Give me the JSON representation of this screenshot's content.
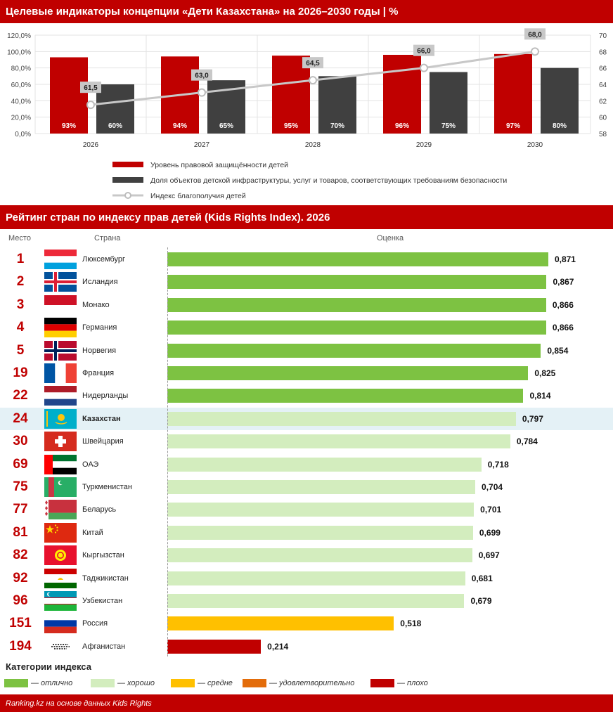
{
  "header1": {
    "title": "Целевые индикаторы концепции «Дети Казахстана» на 2026–2030 годы | %"
  },
  "header2": {
    "title": "Рейтинг стран по индексу прав детей (Kids Rights Index). 2026"
  },
  "chart_data": [
    {
      "type": "bar",
      "categories": [
        "2026",
        "2027",
        "2028",
        "2029",
        "2030"
      ],
      "series": [
        {
          "name": "Уровень правовой защищённости детей",
          "type": "bar",
          "axis": "left",
          "color": "#c00000",
          "values": [
            93,
            94,
            95,
            96,
            97
          ],
          "labels": [
            "93%",
            "94%",
            "95%",
            "96%",
            "97%"
          ]
        },
        {
          "name": "Доля объектов детской инфраструктуры, услуг и товаров, соответствующих требованиям безопасности",
          "type": "bar",
          "axis": "left",
          "color": "#404040",
          "values": [
            60,
            65,
            70,
            75,
            80
          ],
          "labels": [
            "60%",
            "65%",
            "70%",
            "75%",
            "80%"
          ]
        },
        {
          "name": "Индекс благополучия детей",
          "type": "line",
          "axis": "right",
          "color": "#c8c8c8",
          "values": [
            61.5,
            63.0,
            64.5,
            66.0,
            68.0
          ],
          "labels": [
            "61,5",
            "63,0",
            "64,5",
            "66,0",
            "68,0"
          ]
        }
      ],
      "y_left": {
        "range": [
          0,
          120
        ],
        "ticks": [
          "0,0%",
          "20,0%",
          "40,0%",
          "60,0%",
          "80,0%",
          "100,0%",
          "120,0%"
        ]
      },
      "y_right": {
        "range": [
          58,
          70
        ],
        "ticks": [
          "58",
          "60",
          "62",
          "64",
          "66",
          "68",
          "70"
        ]
      },
      "grid": true,
      "legend_position": "bottom"
    },
    {
      "type": "bar",
      "orientation": "horizontal",
      "columns": {
        "rank": "Место",
        "country": "Страна",
        "score": "Оценка"
      },
      "xlim": [
        0,
        0.9
      ],
      "rows": [
        {
          "rank": "1",
          "country": "Люксембург",
          "value": 0.871,
          "label": "0,871",
          "category": "excellent",
          "flag": "luxembourg-flag"
        },
        {
          "rank": "2",
          "country": "Исландия",
          "value": 0.867,
          "label": "0,867",
          "category": "excellent",
          "flag": "iceland-flag"
        },
        {
          "rank": "3",
          "country": "Монако",
          "value": 0.866,
          "label": "0,866",
          "category": "excellent",
          "flag": "monaco-flag"
        },
        {
          "rank": "4",
          "country": "Германия",
          "value": 0.866,
          "label": "0,866",
          "category": "excellent",
          "flag": "germany-flag"
        },
        {
          "rank": "5",
          "country": "Норвегия",
          "value": 0.854,
          "label": "0,854",
          "category": "excellent",
          "flag": "norway-flag"
        },
        {
          "rank": "19",
          "country": "Франция",
          "value": 0.825,
          "label": "0,825",
          "category": "excellent",
          "flag": "france-flag"
        },
        {
          "rank": "22",
          "country": "Нидерланды",
          "value": 0.814,
          "label": "0,814",
          "category": "excellent",
          "flag": "netherlands-flag"
        },
        {
          "rank": "24",
          "country": "Казахстан",
          "value": 0.797,
          "label": "0,797",
          "category": "good",
          "flag": "kazakhstan-flag",
          "highlight": true
        },
        {
          "rank": "30",
          "country": "Швейцария",
          "value": 0.784,
          "label": "0,784",
          "category": "good",
          "flag": "switzerland-flag"
        },
        {
          "rank": "69",
          "country": "ОАЭ",
          "value": 0.718,
          "label": "0,718",
          "category": "good",
          "flag": "uae-flag"
        },
        {
          "rank": "75",
          "country": "Туркменистан",
          "value": 0.704,
          "label": "0,704",
          "category": "good",
          "flag": "turkmenistan-flag"
        },
        {
          "rank": "77",
          "country": "Беларусь",
          "value": 0.701,
          "label": "0,701",
          "category": "good",
          "flag": "belarus-flag"
        },
        {
          "rank": "81",
          "country": "Китай",
          "value": 0.699,
          "label": "0,699",
          "category": "good",
          "flag": "china-flag"
        },
        {
          "rank": "82",
          "country": "Кыргызстан",
          "value": 0.697,
          "label": "0,697",
          "category": "good",
          "flag": "kyrgyzstan-flag"
        },
        {
          "rank": "92",
          "country": "Таджикистан",
          "value": 0.681,
          "label": "0,681",
          "category": "good",
          "flag": "tajikistan-flag"
        },
        {
          "rank": "96",
          "country": "Узбекистан",
          "value": 0.679,
          "label": "0,679",
          "category": "good",
          "flag": "uzbekistan-flag"
        },
        {
          "rank": "151",
          "country": "Россия",
          "value": 0.518,
          "label": "0,518",
          "category": "average",
          "flag": "russia-flag"
        },
        {
          "rank": "194",
          "country": "Афганистан",
          "value": 0.214,
          "label": "0,214",
          "category": "poor",
          "flag": "afghanistan-flag"
        }
      ],
      "legend_title": "Категории индекса",
      "categories_legend": [
        {
          "key": "excellent",
          "label": "— отлично",
          "color": "#7dc242"
        },
        {
          "key": "good",
          "label": "— хорошо",
          "color": "#d3edbe"
        },
        {
          "key": "average",
          "label": "— средне",
          "color": "#ffc000"
        },
        {
          "key": "satisfactory",
          "label": "— удовлетворительно",
          "color": "#e36c0a"
        },
        {
          "key": "poor",
          "label": "— плохо",
          "color": "#c00000"
        }
      ]
    }
  ],
  "footer": {
    "source": "Ranking.kz на основе данных Kids Rights"
  }
}
